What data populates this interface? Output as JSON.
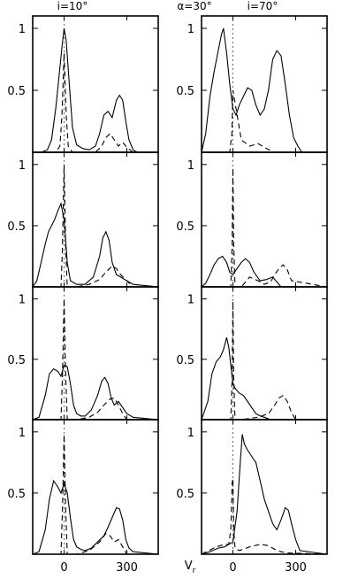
{
  "header": {
    "left": "i=10°",
    "middle": "α=30°",
    "right": "i=70°"
  },
  "xlabel": "V",
  "xlabel_sub": "r",
  "y_ticks": [
    "1",
    "0.5"
  ],
  "x_ticks": [
    "0",
    "300"
  ],
  "chart_data": {
    "type": "line",
    "xlim": [
      -150,
      450
    ],
    "ylim": [
      0,
      1.1
    ],
    "grid": false,
    "columns": [
      "i=10°",
      "i=70°"
    ],
    "panels": [
      {
        "column": 0,
        "row": 0,
        "series": [
          {
            "style": "solid",
            "x": [
              -150,
              -110,
              -80,
              -60,
              -40,
              -25,
              -10,
              0,
              10,
              25,
              40,
              60,
              90,
              120,
              150,
              170,
              190,
              210,
              230,
              250,
              265,
              280,
              295,
              310,
              330,
              350,
              380,
              450
            ],
            "y": [
              0,
              0,
              0.02,
              0.1,
              0.35,
              0.6,
              0.85,
              1.0,
              0.9,
              0.55,
              0.2,
              0.06,
              0.03,
              0.02,
              0.05,
              0.15,
              0.3,
              0.33,
              0.28,
              0.42,
              0.46,
              0.42,
              0.25,
              0.1,
              0.02,
              0,
              0,
              0
            ]
          },
          {
            "style": "dashed",
            "x": [
              -150,
              -40,
              -20,
              -10,
              0,
              10,
              20,
              40,
              150,
              180,
              200,
              220,
              240,
              260,
              280,
              300,
              330,
              450
            ],
            "y": [
              0,
              0,
              0.05,
              0.3,
              0.8,
              0.3,
              0.05,
              0,
              0,
              0.05,
              0.12,
              0.15,
              0.1,
              0.05,
              0.08,
              0.04,
              0,
              0
            ]
          }
        ]
      },
      {
        "column": 1,
        "row": 0,
        "series": [
          {
            "style": "solid",
            "x": [
              -150,
              -130,
              -110,
              -90,
              -70,
              -55,
              -45,
              -30,
              -15,
              0,
              15,
              30,
              50,
              70,
              90,
              110,
              130,
              150,
              170,
              190,
              210,
              230,
              250,
              270,
              290,
              310,
              330,
              450
            ],
            "y": [
              0,
              0.15,
              0.45,
              0.65,
              0.82,
              0.95,
              1.0,
              0.8,
              0.55,
              0.35,
              0.3,
              0.38,
              0.45,
              0.52,
              0.5,
              0.38,
              0.3,
              0.35,
              0.5,
              0.75,
              0.82,
              0.78,
              0.55,
              0.3,
              0.12,
              0.05,
              0,
              0
            ]
          },
          {
            "style": "dashed",
            "x": [
              -150,
              -15,
              -5,
              0,
              5,
              15,
              40,
              80,
              120,
              160,
              200,
              450
            ],
            "y": [
              0,
              0,
              0.15,
              0.5,
              0.45,
              0.35,
              0.1,
              0.05,
              0.07,
              0.03,
              0,
              0
            ]
          }
        ]
      },
      {
        "column": 0,
        "row": 1,
        "series": [
          {
            "style": "solid",
            "x": [
              -150,
              -130,
              -110,
              -90,
              -75,
              -60,
              -45,
              -30,
              -15,
              0,
              15,
              30,
              60,
              100,
              140,
              170,
              185,
              200,
              215,
              230,
              250,
              270,
              300,
              330,
              450
            ],
            "y": [
              0,
              0.05,
              0.2,
              0.35,
              0.45,
              0.5,
              0.55,
              0.62,
              0.68,
              0.55,
              0.2,
              0.05,
              0.02,
              0.02,
              0.08,
              0.25,
              0.4,
              0.45,
              0.38,
              0.2,
              0.1,
              0.08,
              0.05,
              0.02,
              0
            ]
          },
          {
            "style": "dashed",
            "x": [
              -150,
              -15,
              -8,
              0,
              8,
              15,
              60,
              120,
              170,
              200,
              230,
              250,
              270,
              300,
              330,
              450
            ],
            "y": [
              0,
              0,
              0.3,
              1.0,
              0.3,
              0,
              0,
              0.02,
              0.06,
              0.12,
              0.17,
              0.15,
              0.1,
              0.05,
              0,
              0
            ]
          }
        ]
      },
      {
        "column": 1,
        "row": 1,
        "series": [
          {
            "style": "solid",
            "x": [
              -150,
              -130,
              -110,
              -90,
              -70,
              -50,
              -30,
              -15,
              0,
              20,
              40,
              60,
              80,
              100,
              130,
              160,
              190,
              210,
              230,
              450
            ],
            "y": [
              0,
              0.03,
              0.1,
              0.18,
              0.23,
              0.25,
              0.2,
              0.12,
              0.1,
              0.15,
              0.2,
              0.23,
              0.2,
              0.12,
              0.05,
              0.06,
              0.08,
              0.04,
              0,
              0
            ]
          },
          {
            "style": "dashed",
            "x": [
              -150,
              -10,
              -4,
              0,
              4,
              10,
              40,
              80,
              120,
              150,
              180,
              200,
              220,
              240,
              260,
              280,
              450
            ],
            "y": [
              0,
              0,
              0.35,
              0.97,
              0.35,
              0,
              0,
              0.08,
              0.05,
              0.02,
              0.04,
              0.1,
              0.15,
              0.18,
              0.14,
              0.05,
              0
            ]
          }
        ]
      },
      {
        "column": 0,
        "row": 2,
        "series": [
          {
            "style": "solid",
            "x": [
              -150,
              -120,
              -90,
              -70,
              -50,
              -30,
              -15,
              0,
              15,
              30,
              45,
              60,
              80,
              100,
              130,
              160,
              180,
              195,
              210,
              225,
              240,
              260,
              280,
              300,
              330,
              450
            ],
            "y": [
              0,
              0.02,
              0.2,
              0.38,
              0.42,
              0.4,
              0.36,
              0.45,
              0.44,
              0.3,
              0.12,
              0.05,
              0.03,
              0.03,
              0.08,
              0.2,
              0.32,
              0.35,
              0.3,
              0.18,
              0.12,
              0.15,
              0.1,
              0.05,
              0.02,
              0
            ]
          },
          {
            "style": "dashed",
            "x": [
              -150,
              -15,
              -8,
              0,
              8,
              15,
              60,
              120,
              160,
              190,
              220,
              240,
              260,
              280,
              300,
              450
            ],
            "y": [
              0,
              0,
              0.35,
              1.0,
              0.35,
              0,
              0,
              0.02,
              0.06,
              0.12,
              0.17,
              0.18,
              0.12,
              0.05,
              0,
              0
            ]
          }
        ]
      },
      {
        "column": 1,
        "row": 2,
        "series": [
          {
            "style": "solid",
            "x": [
              -150,
              -120,
              -100,
              -80,
              -60,
              -45,
              -30,
              -20,
              -10,
              0,
              10,
              30,
              50,
              70,
              90,
              110,
              130,
              150,
              180,
              450
            ],
            "y": [
              0,
              0.15,
              0.38,
              0.48,
              0.52,
              0.58,
              0.68,
              0.6,
              0.45,
              0.3,
              0.26,
              0.22,
              0.2,
              0.15,
              0.1,
              0.05,
              0.03,
              0.02,
              0,
              0
            ]
          },
          {
            "style": "dashed",
            "x": [
              -150,
              -10,
              -4,
              0,
              4,
              10,
              40,
              120,
              170,
              200,
              220,
              240,
              260,
              280,
              300,
              450
            ],
            "y": [
              0,
              0,
              0.35,
              0.98,
              0.35,
              0,
              0,
              0.02,
              0.05,
              0.12,
              0.18,
              0.2,
              0.15,
              0.06,
              0,
              0
            ]
          }
        ]
      },
      {
        "column": 0,
        "row": 3,
        "series": [
          {
            "style": "solid",
            "x": [
              -150,
              -120,
              -90,
              -70,
              -50,
              -30,
              -15,
              0,
              15,
              30,
              45,
              60,
              80,
              100,
              130,
              160,
              190,
              210,
              230,
              250,
              265,
              280,
              295,
              310,
              330,
              450
            ],
            "y": [
              0,
              0.02,
              0.2,
              0.45,
              0.6,
              0.55,
              0.5,
              0.58,
              0.5,
              0.3,
              0.12,
              0.06,
              0.04,
              0.03,
              0.05,
              0.1,
              0.15,
              0.22,
              0.3,
              0.38,
              0.37,
              0.28,
              0.12,
              0.05,
              0.02,
              0
            ]
          },
          {
            "style": "dashed",
            "x": [
              -150,
              -15,
              -8,
              0,
              8,
              15,
              60,
              120,
              170,
              200,
              220,
              240,
              260,
              280,
              300,
              450
            ],
            "y": [
              0,
              0,
              0.35,
              0.98,
              0.35,
              0,
              0,
              0.03,
              0.1,
              0.17,
              0.15,
              0.1,
              0.12,
              0.06,
              0,
              0
            ]
          }
        ]
      },
      {
        "column": 1,
        "row": 3,
        "series": [
          {
            "style": "solid",
            "x": [
              -150,
              -110,
              -70,
              -40,
              -20,
              0,
              20,
              35,
              45,
              55,
              70,
              90,
              110,
              130,
              150,
              170,
              190,
              210,
              230,
              250,
              265,
              280,
              300,
              320,
              450
            ],
            "y": [
              0,
              0.02,
              0.05,
              0.06,
              0.08,
              0.1,
              0.35,
              0.75,
              0.98,
              0.9,
              0.85,
              0.8,
              0.75,
              0.6,
              0.45,
              0.35,
              0.25,
              0.2,
              0.28,
              0.38,
              0.36,
              0.25,
              0.12,
              0.03,
              0
            ]
          },
          {
            "style": "dashed",
            "x": [
              -150,
              -80,
              -40,
              -20,
              -10,
              -4,
              0,
              4,
              10,
              30,
              80,
              130,
              170,
              200,
              230,
              260,
              450
            ],
            "y": [
              0,
              0.06,
              0.08,
              0.08,
              0.2,
              0.58,
              0.62,
              0.2,
              0.05,
              0.03,
              0.06,
              0.08,
              0.07,
              0.04,
              0.02,
              0.01,
              0
            ]
          }
        ]
      }
    ]
  }
}
